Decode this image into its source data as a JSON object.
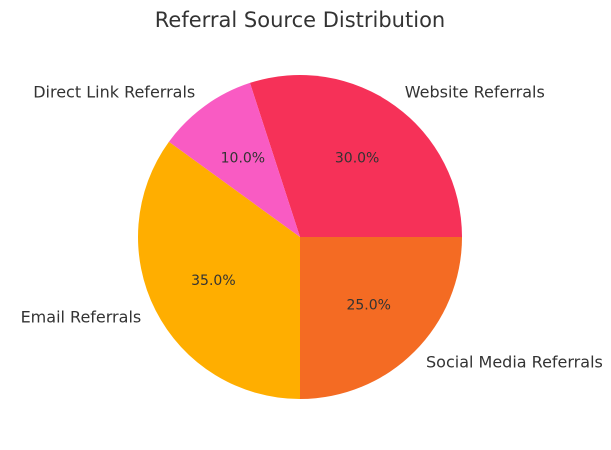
{
  "chart_data": {
    "type": "pie",
    "title": "Referral Source Distribution",
    "start_angle_deg": 108,
    "direction": "clockwise",
    "slices": [
      {
        "label": "Website Referrals",
        "value": 30.0,
        "pct_label": "30.0%",
        "color": "#F63158"
      },
      {
        "label": "Social Media Referrals",
        "value": 25.0,
        "pct_label": "25.0%",
        "color": "#F46B23"
      },
      {
        "label": "Email Referrals",
        "value": 35.0,
        "pct_label": "35.0%",
        "color": "#FFAE00"
      },
      {
        "label": "Direct Link Referrals",
        "value": 10.0,
        "pct_label": "10.0%",
        "color": "#F95BC3"
      }
    ]
  }
}
